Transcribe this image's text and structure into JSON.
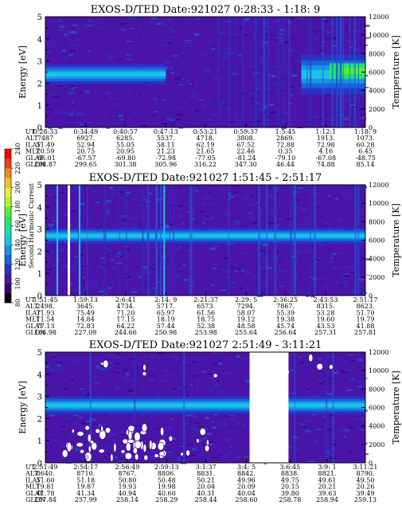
{
  "colors": {
    "ramp": [
      "#000000",
      "#3a007a",
      "#4b14a8",
      "#2a33c4",
      "#1b63dc",
      "#1597e8",
      "#19c4e6",
      "#17e2b0",
      "#1ee66a",
      "#55f039",
      "#a8f82f",
      "#e6f036",
      "#f6bf2c",
      "#f08a1c",
      "#e8421a",
      "#ff0000"
    ],
    "gap": "#ffffff"
  },
  "colorbar": {
    "label": "Second Harmonic Current",
    "ticks": [
      "80",
      "100",
      "120",
      "140",
      "160",
      "180",
      "200",
      "220",
      "240"
    ],
    "range": [
      80,
      240
    ]
  },
  "row_labels": [
    "UT",
    "ALT",
    "ILAT",
    "MLT",
    "GLAT",
    "GLON"
  ],
  "chart_data": [
    {
      "type": "heatmap",
      "title": "EXOS-D/TED   Date:921027   0:28:33 - 1:18: 9",
      "ylabel": "Energy [eV]",
      "ylabel_right": "Temperature [K]",
      "ylim": [
        0,
        5
      ],
      "ylim_right": [
        0,
        12000
      ],
      "yticks": [
        "0",
        "1",
        "2",
        "3",
        "4",
        "5"
      ],
      "yticks_right": [
        "0",
        "2000",
        "4000",
        "6000",
        "8000",
        "10000",
        "12000"
      ],
      "columns": [
        [
          "0:28:33",
          "7487",
          "51.49",
          "20.59",
          "-66.01",
          "298.87"
        ],
        [
          "0:34:49",
          "6927.",
          "52.94",
          "20.75",
          "-67.57",
          "299.65"
        ],
        [
          "0:40:57",
          "6285.",
          "55.05",
          "20.95",
          "-69.80",
          "301.38"
        ],
        [
          "0:47:13",
          "5537.",
          "58.11",
          "21.23",
          "-72.98",
          "305.96"
        ],
        [
          "0:53:21",
          "4718.",
          "62.19",
          "21.65",
          "-77.05",
          "316.22"
        ],
        [
          "0:59:37",
          "3808.",
          "67.52",
          "22.46",
          "-81.24",
          "347.30"
        ],
        [
          "1:5:45",
          "2869.",
          "72.88",
          "0.35",
          "-79.10",
          "46.44"
        ],
        [
          "1:12:1",
          "1913.",
          "72.98",
          "4.16",
          "-67.08",
          "74.88"
        ],
        [
          "1:18: 9",
          "1073.",
          "60.28",
          "6.45",
          "-48.75",
          "85.14"
        ]
      ],
      "band": {
        "center_eV": 2.4,
        "width_eV": 0.9
      },
      "gaps": []
    },
    {
      "type": "heatmap",
      "title": "EXOS-D/TED   Date:921027   1:51:45 - 2:51:17",
      "ylabel": "Energy [eV]",
      "ylabel_right": "Temperature [K]",
      "ylim": [
        0,
        5
      ],
      "ylim_right": [
        0,
        12000
      ],
      "yticks": [
        "0",
        "1",
        "2",
        "3",
        "4",
        "5"
      ],
      "yticks_right": [
        "0",
        "2000",
        "4000",
        "6000",
        "8000",
        "10000",
        "12000"
      ],
      "columns": [
        [
          "1:51:45",
          "2498.",
          "71.93",
          "11.54",
          "77.13",
          "166.98"
        ],
        [
          "1:59:13",
          "3645.",
          "75.49",
          "14.84",
          "72.83",
          "227.09"
        ],
        [
          "2:6:41",
          "4734.",
          "71.20",
          "17.15",
          "64.22",
          "244.66"
        ],
        [
          "2:14: 9",
          "5717.",
          "65.97",
          "18.19",
          "57.44",
          "250.98"
        ],
        [
          "2:21:37",
          "6573.",
          "61.56",
          "18.75",
          "52.38",
          "253.98"
        ],
        [
          "2:29: 5",
          "7294.",
          "58.07",
          "19.12",
          "48.58",
          "255.64"
        ],
        [
          "2:36:25",
          "7867.",
          "55.39",
          "19.38",
          "45.74",
          "256.64"
        ],
        [
          "2:43:53",
          "8315.",
          "53.28",
          "19.60",
          "43.53",
          "257.31"
        ],
        [
          "2:51:17",
          "8623.",
          "51.70",
          "19.79",
          "41.88",
          "257.81"
        ]
      ],
      "band": {
        "center_eV": 2.7,
        "width_eV": 0.7
      },
      "gaps": []
    },
    {
      "type": "heatmap",
      "title": "EXOS-D/TED   Date:921027   2:51:49 - 3:11:21",
      "ylabel": "Energy [eV]",
      "ylabel_right": "Temperature [K]",
      "ylim": [
        0,
        5
      ],
      "ylim_right": [
        0,
        12000
      ],
      "yticks": [
        "0",
        "1",
        "2",
        "3",
        "4",
        "5"
      ],
      "yticks_right": [
        "0",
        "2000",
        "4000",
        "6000",
        "8000",
        "10000",
        "12000"
      ],
      "columns": [
        [
          "2:51:49",
          "8640.",
          "51.60",
          "19.81",
          "41.78",
          "257.84"
        ],
        [
          "2:54:17",
          "8710.",
          "51.18",
          "19.87",
          "41.34",
          "257.99"
        ],
        [
          "2:56:49",
          "8767.",
          "50.80",
          "19.93",
          "40.94",
          "258.14"
        ],
        [
          "2:59:13",
          "8806.",
          "50.48",
          "19.98",
          "40.60",
          "258.29"
        ],
        [
          "3:1:37",
          "8831.",
          "50.21",
          "20.04",
          "40.31",
          "258.44"
        ],
        [
          "3:4: 5",
          "8842.",
          "49.96",
          "20.09",
          "40.04",
          "258.60"
        ],
        [
          "3:6:45",
          "8838.",
          "49.75",
          "20.15",
          "39.80",
          "258.78"
        ],
        [
          "3:9: 1",
          "8821.",
          "49.61",
          "20.21",
          "39.63",
          "258.94"
        ],
        [
          "3:11:21",
          "8790.",
          "49.50",
          "20.26",
          "39.49",
          "259.13"
        ]
      ],
      "band": {
        "center_eV": 2.6,
        "width_eV": 0.8
      },
      "gaps": [
        [
          "3:4: 5",
          "3:6:45"
        ]
      ]
    }
  ]
}
